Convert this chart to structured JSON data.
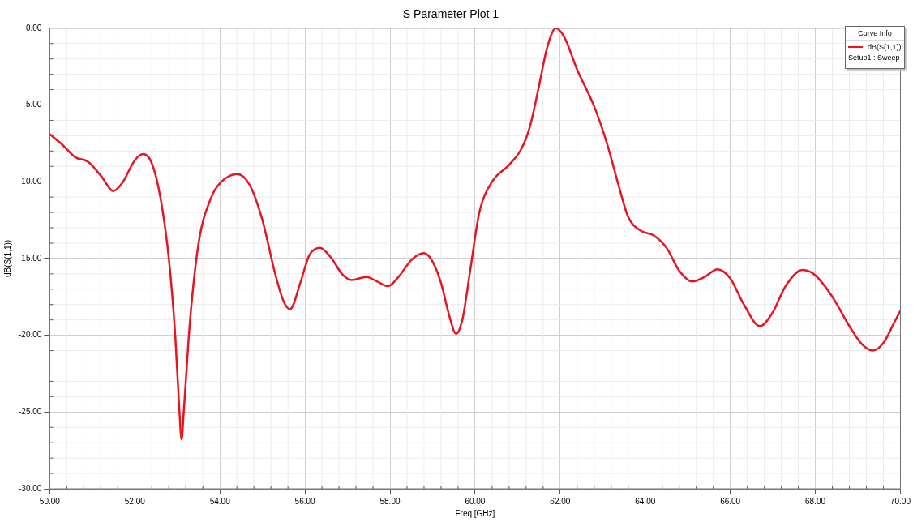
{
  "chart_data": {
    "type": "line",
    "title": "S Parameter Plot 1",
    "xlabel": "Freq [GHz]",
    "ylabel": "dB(S(1,1))",
    "legend_title": "Curve Info",
    "legend": "top right",
    "grid": true,
    "marker": "none",
    "line_style": "solid",
    "annotations": [
      "Setup1 : Sweep"
    ],
    "xlim": [
      50,
      70
    ],
    "ylim": [
      -30,
      0
    ],
    "xticks": [
      {
        "value": 50,
        "label": "50.00"
      },
      {
        "value": 52,
        "label": "52.00"
      },
      {
        "value": 54,
        "label": "54.00"
      },
      {
        "value": 56,
        "label": "56.00"
      },
      {
        "value": 58,
        "label": "58.00"
      },
      {
        "value": 60,
        "label": "60.00"
      },
      {
        "value": 62,
        "label": "62.00"
      },
      {
        "value": 64,
        "label": "64.00"
      },
      {
        "value": 66,
        "label": "66.00"
      },
      {
        "value": 68,
        "label": "68.00"
      },
      {
        "value": 70,
        "label": "70.00"
      }
    ],
    "yticks": [
      {
        "value": -30,
        "label": "-30.00"
      },
      {
        "value": -25,
        "label": "-25.00"
      },
      {
        "value": -20,
        "label": "-20.00"
      },
      {
        "value": -15,
        "label": "-15.00"
      },
      {
        "value": -10,
        "label": "-10.00"
      },
      {
        "value": -5,
        "label": "-5.00"
      },
      {
        "value": 0,
        "label": "0.00"
      }
    ],
    "x": [
      50.0,
      50.3,
      50.6,
      50.9,
      51.2,
      51.5,
      51.7,
      52.0,
      52.2,
      52.4,
      52.6,
      52.8,
      52.95,
      53.05,
      53.1,
      53.15,
      53.3,
      53.5,
      53.8,
      54.0,
      54.4,
      54.7,
      55.0,
      55.3,
      55.5,
      55.65,
      55.9,
      56.1,
      56.35,
      56.6,
      56.9,
      57.1,
      57.45,
      57.7,
      57.95,
      58.2,
      58.5,
      58.8,
      59.0,
      59.2,
      59.4,
      59.55,
      59.7,
      59.9,
      60.1,
      60.4,
      60.8,
      61.1,
      61.3,
      61.5,
      61.7,
      61.9,
      62.1,
      62.4,
      62.8,
      63.1,
      63.4,
      63.6,
      63.9,
      64.2,
      64.5,
      64.8,
      65.1,
      65.4,
      65.7,
      66.0,
      66.3,
      66.7,
      67.0,
      67.3,
      67.7,
      68.0,
      68.4,
      68.8,
      69.1,
      69.35,
      69.6,
      69.85,
      70.0
    ],
    "series": [
      {
        "name": "dB(S(1,1))",
        "color": "#e8141e",
        "values": [
          -6.9,
          -7.6,
          -8.4,
          -8.7,
          -9.6,
          -10.6,
          -10.1,
          -8.6,
          -8.2,
          -8.8,
          -11,
          -15,
          -20,
          -25,
          -26.8,
          -25,
          -19,
          -14,
          -11,
          -10.1,
          -9.5,
          -10.2,
          -12.5,
          -16,
          -17.8,
          -18.3,
          -16.5,
          -14.8,
          -14.3,
          -14.9,
          -16.1,
          -16.4,
          -16.2,
          -16.5,
          -16.8,
          -16.2,
          -15.1,
          -14.65,
          -15.2,
          -16.6,
          -18.8,
          -19.9,
          -19,
          -15.5,
          -12,
          -10,
          -8.9,
          -7.8,
          -6.3,
          -3.8,
          -1.2,
          0.0,
          -0.6,
          -2.7,
          -5.1,
          -7.5,
          -10.5,
          -12.3,
          -13.2,
          -13.5,
          -14.3,
          -15.8,
          -16.5,
          -16.2,
          -15.7,
          -16.3,
          -17.9,
          -19.4,
          -18.5,
          -16.8,
          -15.75,
          -16.1,
          -17.5,
          -19.4,
          -20.6,
          -21.0,
          -20.5,
          -19.2,
          -18.4
        ]
      }
    ]
  }
}
